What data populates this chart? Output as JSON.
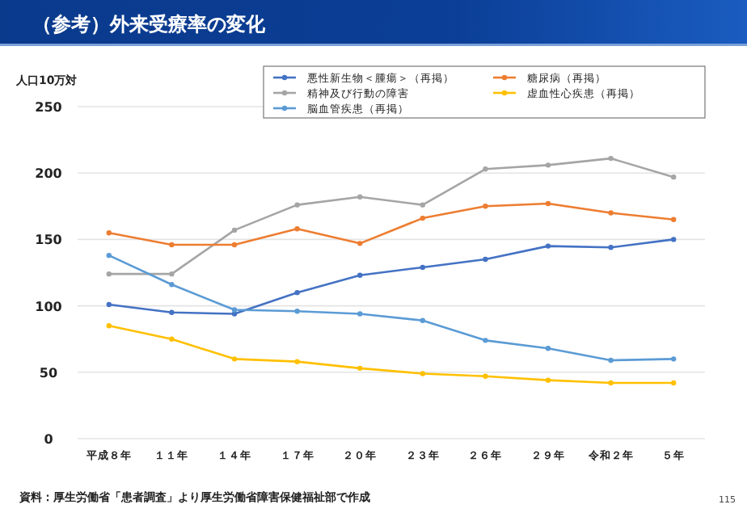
{
  "chart_data": {
    "type": "line",
    "title": "（参考）外来受療率の変化",
    "ylabel": "人口10万対",
    "categories": [
      "平成８年",
      "１１年",
      "１４年",
      "１７年",
      "２０年",
      "２３年",
      "２６年",
      "２９年",
      "令和２年",
      "５年"
    ],
    "series": [
      {
        "name": "悪性新生物＜腫瘍＞（再掲）",
        "color": "#4472c4",
        "values": [
          101,
          95,
          94,
          110,
          123,
          129,
          135,
          145,
          144,
          150
        ]
      },
      {
        "name": "精神及び行動の障害",
        "color": "#a5a5a5",
        "values": [
          124,
          124,
          157,
          176,
          182,
          176,
          203,
          206,
          211,
          197
        ]
      },
      {
        "name": "脳血管疾患（再掲）",
        "color": "#5b9bd5",
        "values": [
          138,
          116,
          97,
          96,
          94,
          89,
          74,
          68,
          59,
          60
        ]
      },
      {
        "name": "糖尿病（再掲）",
        "color": "#ed7d31",
        "values": [
          155,
          146,
          146,
          158,
          147,
          166,
          175,
          177,
          170,
          165
        ]
      },
      {
        "name": "虚血性心疾患（再掲）",
        "color": "#ffc000",
        "values": [
          85,
          75,
          60,
          58,
          53,
          49,
          47,
          44,
          42,
          42
        ]
      }
    ],
    "ylim": [
      0,
      250
    ],
    "yticks": [
      0,
      50,
      100,
      150,
      200,
      250
    ],
    "grid": "y",
    "legend": "top right",
    "marker": "circle",
    "line_style": "solid",
    "annotations": [
      "資料：厚生労働省「患者調査」より厚生労働省障害保健福祉部で作成",
      "115"
    ]
  }
}
